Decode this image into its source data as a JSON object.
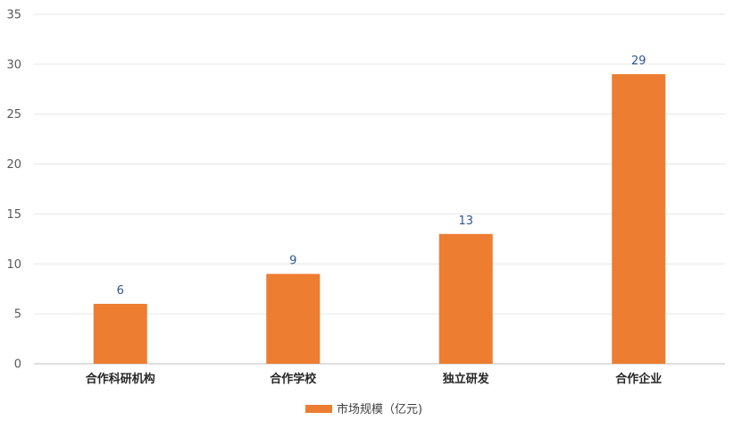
{
  "chart_data": {
    "type": "bar",
    "categories": [
      "合作科研机构",
      "合作学校",
      "独立研发",
      "合作企业"
    ],
    "series": [
      {
        "name": "市场规模（亿元)",
        "values": [
          6,
          9,
          13,
          29
        ],
        "color": "#ed7d31"
      }
    ],
    "title": "",
    "xlabel": "",
    "ylabel": "",
    "ylim": [
      0,
      35
    ],
    "yticks": [
      0,
      5,
      10,
      15,
      20,
      25,
      30,
      35
    ],
    "grid": true,
    "data_labels": true,
    "data_label_color": "#2f5597",
    "legend": {
      "position": "bottom"
    }
  }
}
